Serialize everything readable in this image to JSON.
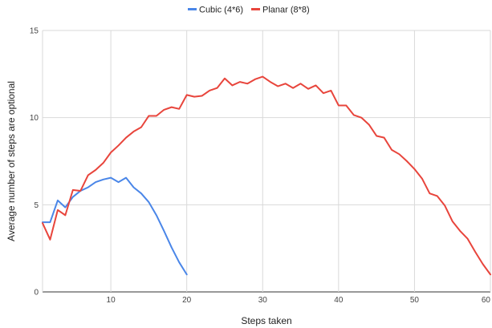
{
  "chart_data": {
    "type": "line",
    "xlabel": "Steps taken",
    "ylabel": "Average number of steps are optional",
    "xlim": [
      1,
      60
    ],
    "ylim": [
      0,
      15
    ],
    "x_ticks": [
      10,
      20,
      30,
      40,
      50,
      60
    ],
    "x_tick_labels": [
      "10",
      "20",
      "30",
      "40",
      "50",
      "60"
    ],
    "y_ticks": [
      0,
      5,
      10,
      15
    ],
    "y_tick_labels": [
      "0",
      "5",
      "10",
      "15"
    ],
    "grid": true,
    "legend_position": "top",
    "series": [
      {
        "name": "Cubic (4*6)",
        "color": "#4a86e8",
        "x": [
          1,
          2,
          3,
          4,
          5,
          6,
          7,
          8,
          9,
          10,
          11,
          12,
          13,
          14,
          15,
          16,
          17,
          18,
          19,
          20
        ],
        "y": [
          4.0,
          4.0,
          5.25,
          4.85,
          5.45,
          5.8,
          6.0,
          6.3,
          6.45,
          6.55,
          6.3,
          6.55,
          6.0,
          5.65,
          5.15,
          4.4,
          3.5,
          2.55,
          1.7,
          1.0
        ]
      },
      {
        "name": "Planar (8*8)",
        "color": "#e8453c",
        "x": [
          1,
          2,
          3,
          4,
          5,
          6,
          7,
          8,
          9,
          10,
          11,
          12,
          13,
          14,
          15,
          16,
          17,
          18,
          19,
          20,
          21,
          22,
          23,
          24,
          25,
          26,
          27,
          28,
          29,
          30,
          31,
          32,
          33,
          34,
          35,
          36,
          37,
          38,
          39,
          40,
          41,
          42,
          43,
          44,
          45,
          46,
          47,
          48,
          49,
          50,
          51,
          52,
          53,
          54,
          55,
          56,
          57,
          58,
          59,
          60
        ],
        "y": [
          3.95,
          3.0,
          4.7,
          4.4,
          5.85,
          5.8,
          6.7,
          7.0,
          7.4,
          8.0,
          8.4,
          8.85,
          9.2,
          9.45,
          10.1,
          10.1,
          10.45,
          10.6,
          10.5,
          11.3,
          11.2,
          11.25,
          11.55,
          11.7,
          12.25,
          11.85,
          12.05,
          11.95,
          12.2,
          12.35,
          12.05,
          11.8,
          11.95,
          11.7,
          11.95,
          11.65,
          11.85,
          11.4,
          11.55,
          10.7,
          10.7,
          10.15,
          10.0,
          9.6,
          8.95,
          8.85,
          8.15,
          7.9,
          7.5,
          7.05,
          6.5,
          5.65,
          5.5,
          4.95,
          4.05,
          3.5,
          3.05,
          2.3,
          1.6,
          1.0
        ]
      }
    ]
  }
}
